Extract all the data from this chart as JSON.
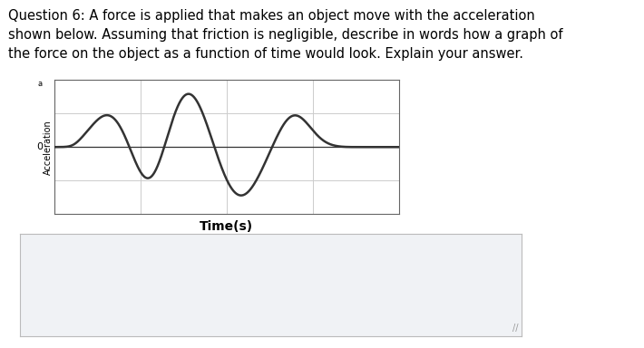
{
  "question_text_lines": [
    "Question 6: A force is applied that makes an object move with the acceleration",
    "shown below. Assuming that friction is negligible, describe in words how a graph of",
    "the force on the object as a function of time would look. Explain your answer."
  ],
  "xlabel": "Time(s)",
  "ylabel": "Acceleration",
  "ylabel_zero_label": "0",
  "grid_color": "#cccccc",
  "line_color": "#333333",
  "line_width": 1.8,
  "bg_color": "#ffffff",
  "plot_bg_color": "#ffffff",
  "answer_box_color": "#f0f2f5",
  "answer_box_border": "#bbbbbb",
  "text_fontsize": 10.5,
  "xlabel_fontsize": 10,
  "ylabel_fontsize": 7,
  "zero_fontsize": 8
}
